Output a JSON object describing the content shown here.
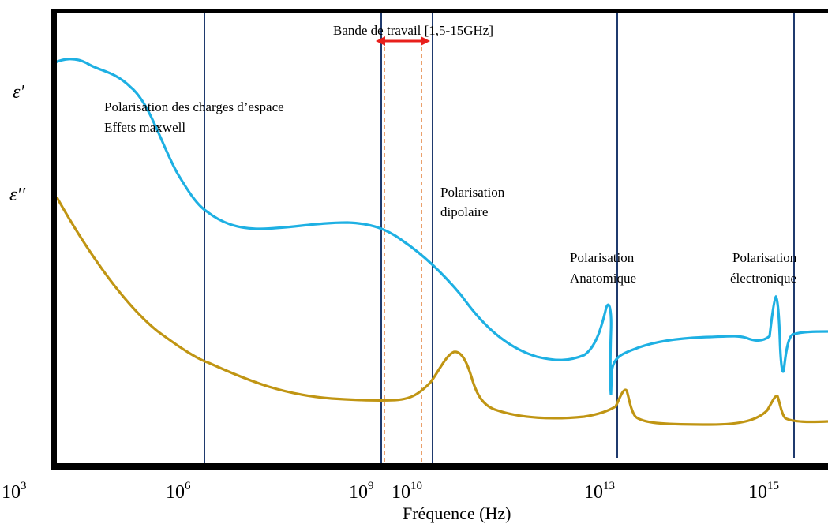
{
  "chart_data": {
    "type": "line",
    "xlabel": "Fréquence (Hz)",
    "x_scale": "log",
    "x_ticks": [
      {
        "value": 1000.0,
        "base": "10",
        "exp": "3"
      },
      {
        "value": 1000000.0,
        "base": "10",
        "exp": "6"
      },
      {
        "value": 1000000000.0,
        "base": "10",
        "exp": "9"
      },
      {
        "value": 10000000000.0,
        "base": "10",
        "exp": "10"
      },
      {
        "value": 10000000000000.0,
        "base": "10",
        "exp": "13"
      },
      {
        "value": 1000000000000000.0,
        "base": "10",
        "exp": "15"
      }
    ],
    "y_labels": {
      "eps_prime": "ε′",
      "eps_double_prime": "ε′′"
    },
    "band": {
      "label": "Bande de travail [1,5-15GHz]",
      "from_hz": 1500000000.0,
      "to_hz": 15000000000.0
    },
    "annotations": {
      "space_charge": [
        "Polarisation des charges d’espace",
        "Effets maxwell"
      ],
      "dipolar": [
        "Polarisation",
        "dipolaire"
      ],
      "atomic": [
        "Polarisation",
        "Anatomique"
      ],
      "electronic": [
        "Polarisation",
        "électronique"
      ]
    },
    "colors": {
      "eps_prime": "#1eb0e3",
      "eps_double_prime": "#c09513",
      "vertical_lines": "#1f3a6e",
      "band_dashed": "#e0782e",
      "band_arrow": "#e8201c",
      "axes": "#000000"
    }
  }
}
